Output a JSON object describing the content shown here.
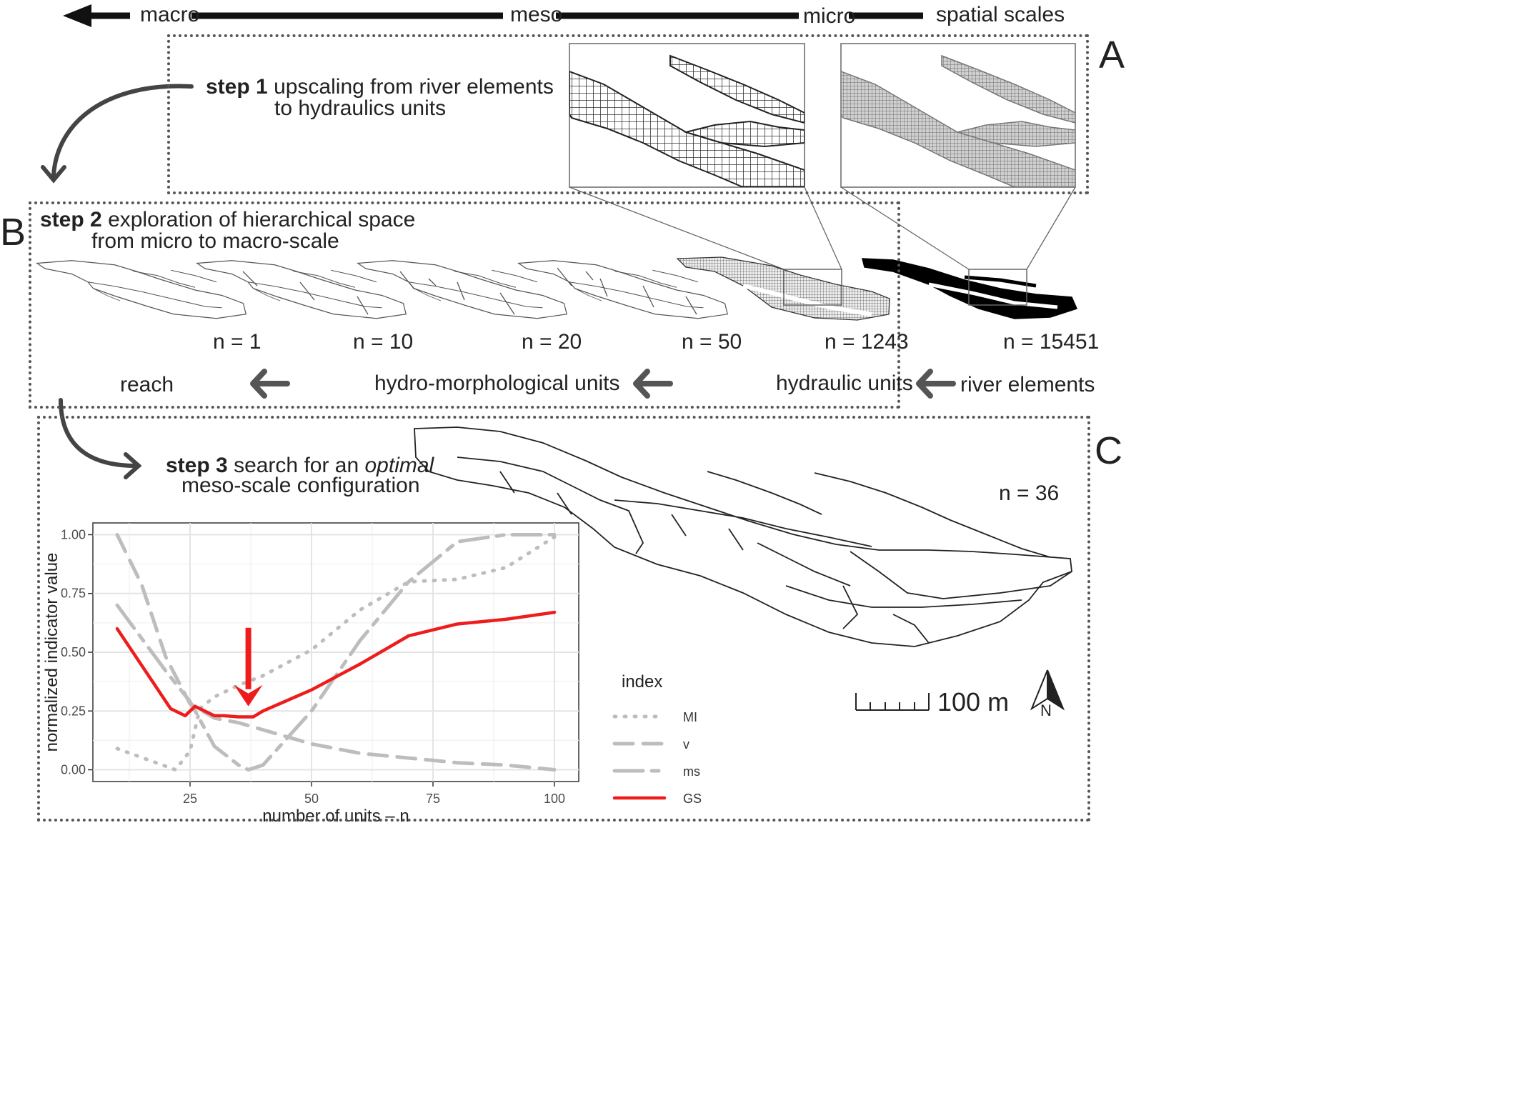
{
  "scale_bar": {
    "labels": [
      "macro",
      "meso",
      "micro"
    ],
    "title": "spatial scales"
  },
  "panels": {
    "a": "A",
    "b": "B",
    "c": "C"
  },
  "step1": {
    "bold": "step 1",
    "line1": "upscaling from river elements",
    "line2": "to hydraulics units"
  },
  "step2": {
    "bold": "step 2",
    "line1": "exploration of hierarchical space",
    "line2": "from micro to macro-scale"
  },
  "step3": {
    "bold": "step  3",
    "line1_pre": "search for an",
    "line1_italic": "optimal",
    "line2": "meso-scale configuration"
  },
  "thumbnails": [
    {
      "n": "n = 1"
    },
    {
      "n": "n = 10"
    },
    {
      "n": "n = 20"
    },
    {
      "n": "n = 50"
    },
    {
      "n": "n = 1243"
    },
    {
      "n": "n = 15451"
    }
  ],
  "scale_labels": {
    "reach": "reach",
    "hmu": "hydro-morphological units",
    "hu": "hydraulic units",
    "re": "river elements"
  },
  "large_map": {
    "n": "n = 36",
    "scalebar_label": "100 m",
    "north_label": "N"
  },
  "chart_data": {
    "type": "line",
    "title": "",
    "xlabel": "number of units – n",
    "ylabel": "normalized indicator value",
    "xlim": [
      5,
      105
    ],
    "ylim": [
      -0.05,
      1.05
    ],
    "xticks": [
      25,
      50,
      75,
      100
    ],
    "yticks": [
      0.0,
      0.25,
      0.5,
      0.75,
      1.0
    ],
    "ytick_labels": [
      "0.00",
      "0.25",
      "0.50",
      "0.75",
      "1.00"
    ],
    "grid": true,
    "legend_title": "index",
    "legend_position": "right",
    "series": [
      {
        "name": "MI",
        "style": "dotted",
        "color": "#bdbdbd",
        "x": [
          10,
          22,
          25,
          27,
          30,
          35,
          40,
          50,
          60,
          70,
          80,
          90,
          100
        ],
        "y": [
          0.09,
          0.0,
          0.08,
          0.26,
          0.31,
          0.36,
          0.4,
          0.51,
          0.68,
          0.8,
          0.81,
          0.86,
          0.99
        ]
      },
      {
        "name": "v",
        "style": "dashed",
        "color": "#bdbdbd",
        "x": [
          10,
          15,
          20,
          25,
          30,
          35,
          40,
          50,
          60,
          70,
          80,
          90,
          100
        ],
        "y": [
          1.0,
          0.79,
          0.48,
          0.28,
          0.22,
          0.2,
          0.17,
          0.11,
          0.07,
          0.05,
          0.03,
          0.02,
          0.0
        ]
      },
      {
        "name": "ms",
        "style": "longdash",
        "color": "#bdbdbd",
        "x": [
          10,
          20,
          25,
          30,
          35,
          37,
          40,
          50,
          60,
          70,
          80,
          90,
          100
        ],
        "y": [
          0.7,
          0.42,
          0.29,
          0.1,
          0.02,
          0.0,
          0.02,
          0.25,
          0.55,
          0.8,
          0.97,
          1.0,
          1.0
        ]
      },
      {
        "name": "GS",
        "style": "solid",
        "color": "#ee1c1c",
        "x": [
          10,
          21,
          24,
          26,
          30,
          32,
          35,
          38,
          40,
          50,
          60,
          70,
          80,
          90,
          100
        ],
        "y": [
          0.6,
          0.26,
          0.23,
          0.27,
          0.23,
          0.23,
          0.225,
          0.225,
          0.25,
          0.34,
          0.45,
          0.57,
          0.62,
          0.64,
          0.67
        ]
      }
    ],
    "annotation": {
      "type": "arrow",
      "x": 37,
      "y": 0.27,
      "color": "#ee1c1c"
    }
  }
}
